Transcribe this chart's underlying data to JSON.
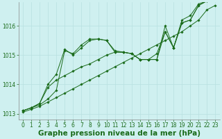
{
  "background_color": "#cff0f0",
  "grid_color": "#b8e0e0",
  "line_color": "#1a6b1a",
  "xlabel": "Graphe pression niveau de la mer (hPa)",
  "ylim": [
    1012.8,
    1016.8
  ],
  "yticks": [
    1013,
    1014,
    1015,
    1016
  ],
  "xlim": [
    -0.5,
    23.5
  ],
  "xticks": [
    0,
    1,
    2,
    3,
    4,
    5,
    6,
    7,
    8,
    9,
    10,
    11,
    12,
    13,
    14,
    15,
    16,
    17,
    18,
    19,
    20,
    21,
    22,
    23
  ],
  "series": [
    [
      1013.1,
      1013.2,
      1013.3,
      1013.5,
      1013.8,
      1015.15,
      1015.05,
      1015.35,
      1015.55,
      1015.55,
      1015.5,
      1015.1,
      1015.1,
      1015.05,
      1014.85,
      1014.85,
      1015.05,
      1015.8,
      1015.25,
      1016.1,
      1016.2,
      1016.7,
      1016.85,
      1016.9
    ],
    [
      1013.1,
      1013.2,
      1013.35,
      1013.9,
      1014.15,
      1014.3,
      1014.45,
      1014.6,
      1014.7,
      1014.85,
      1015.0,
      1015.1,
      1015.1,
      1015.05,
      1014.85,
      1014.85,
      1014.85,
      1015.8,
      1015.25,
      1016.1,
      1016.2,
      1016.7,
      1016.85,
      1016.9
    ],
    [
      1013.05,
      1013.15,
      1013.25,
      1013.4,
      1013.55,
      1013.7,
      1013.85,
      1014.0,
      1014.15,
      1014.3,
      1014.45,
      1014.6,
      1014.75,
      1014.9,
      1015.05,
      1015.2,
      1015.35,
      1015.5,
      1015.65,
      1015.8,
      1016.0,
      1016.2,
      1016.55,
      1016.7
    ],
    [
      1013.1,
      1013.2,
      1013.35,
      1014.0,
      1014.35,
      1015.2,
      1015.0,
      1015.25,
      1015.5,
      1015.55,
      1015.5,
      1015.15,
      1015.1,
      1015.05,
      1014.85,
      1014.85,
      1014.85,
      1016.0,
      1015.25,
      1016.2,
      1016.35,
      1016.75,
      1016.85,
      1016.9
    ]
  ],
  "marker": "D",
  "markersize": 1.8,
  "linewidth": 0.7,
  "xlabel_fontsize": 7.5,
  "tick_fontsize": 5.5,
  "tick_label_color": "#1a6b1a",
  "axis_label_color": "#1a6b1a",
  "spine_color": "#888888",
  "figsize": [
    3.2,
    2.0
  ],
  "dpi": 100
}
